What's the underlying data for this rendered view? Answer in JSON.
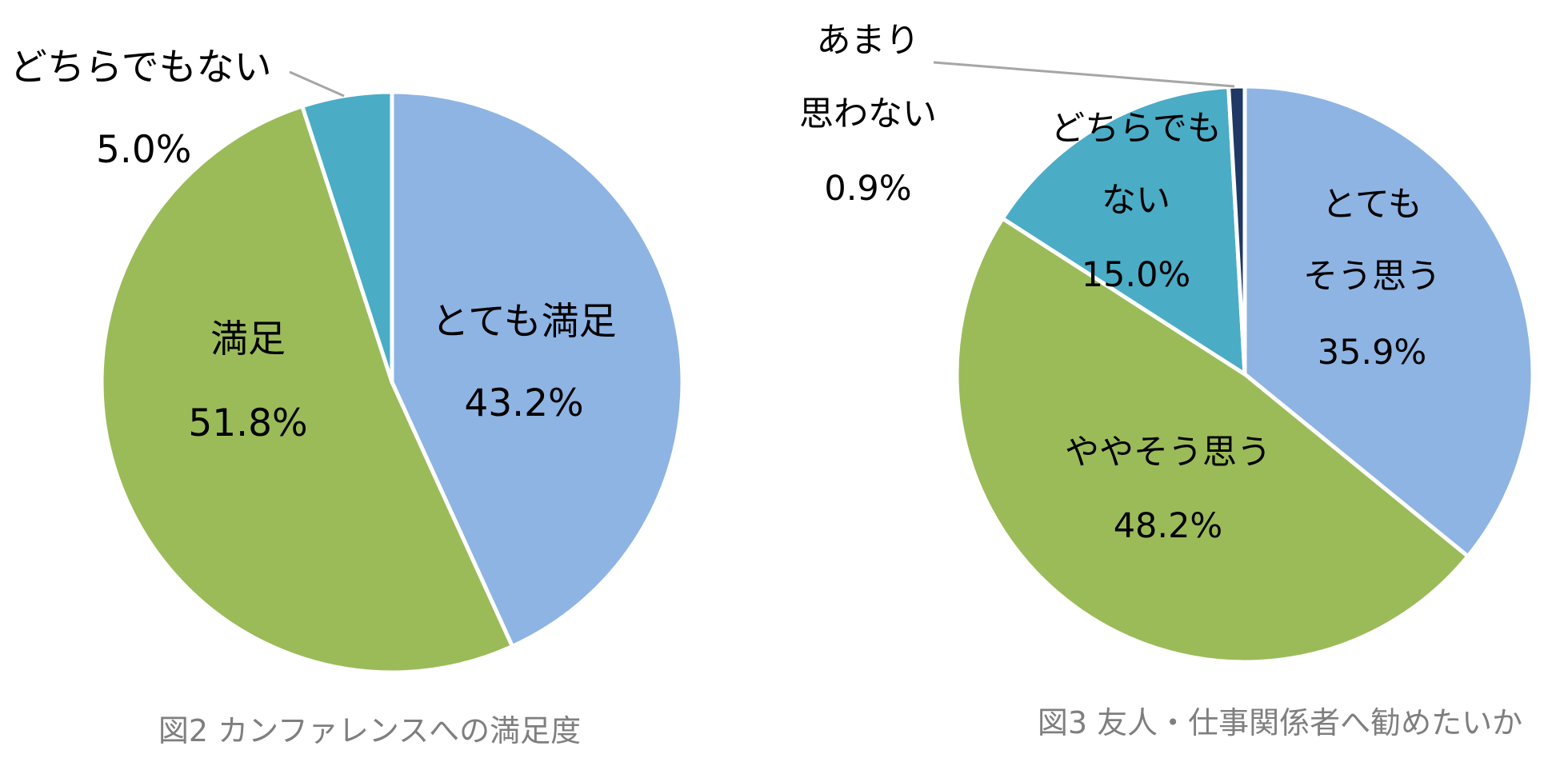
{
  "chart_data": [
    {
      "type": "pie",
      "title": "図2 カンファレンスへの満足度",
      "start": "top",
      "direction": "clockwise",
      "slices": [
        {
          "name": "とても満足",
          "value": 43.2,
          "value_label": "43.2%",
          "color": "#8EB4E3"
        },
        {
          "name": "満足",
          "value": 51.8,
          "value_label": "51.8%",
          "color": "#9BBB59"
        },
        {
          "name": "どちらでもない",
          "value": 5.0,
          "value_label": "5.0%",
          "color": "#4BACC6"
        }
      ]
    },
    {
      "type": "pie",
      "title": "図3 友人・仕事関係者へ勧めたいか",
      "start": "top",
      "direction": "clockwise",
      "slices": [
        {
          "name_lines": [
            "とても",
            "そう思う"
          ],
          "value": 35.9,
          "value_label": "35.9%",
          "color": "#8EB4E3"
        },
        {
          "name_lines": [
            "ややそう思う"
          ],
          "value": 48.2,
          "value_label": "48.2%",
          "color": "#9BBB59"
        },
        {
          "name_lines": [
            "どちらでも",
            "ない"
          ],
          "value": 15.0,
          "value_label": "15.0%",
          "color": "#4BACC6"
        },
        {
          "name_lines": [
            "あまり",
            "思わない"
          ],
          "value": 0.9,
          "value_label": "0.9%",
          "color": "#1F3864"
        }
      ]
    }
  ]
}
